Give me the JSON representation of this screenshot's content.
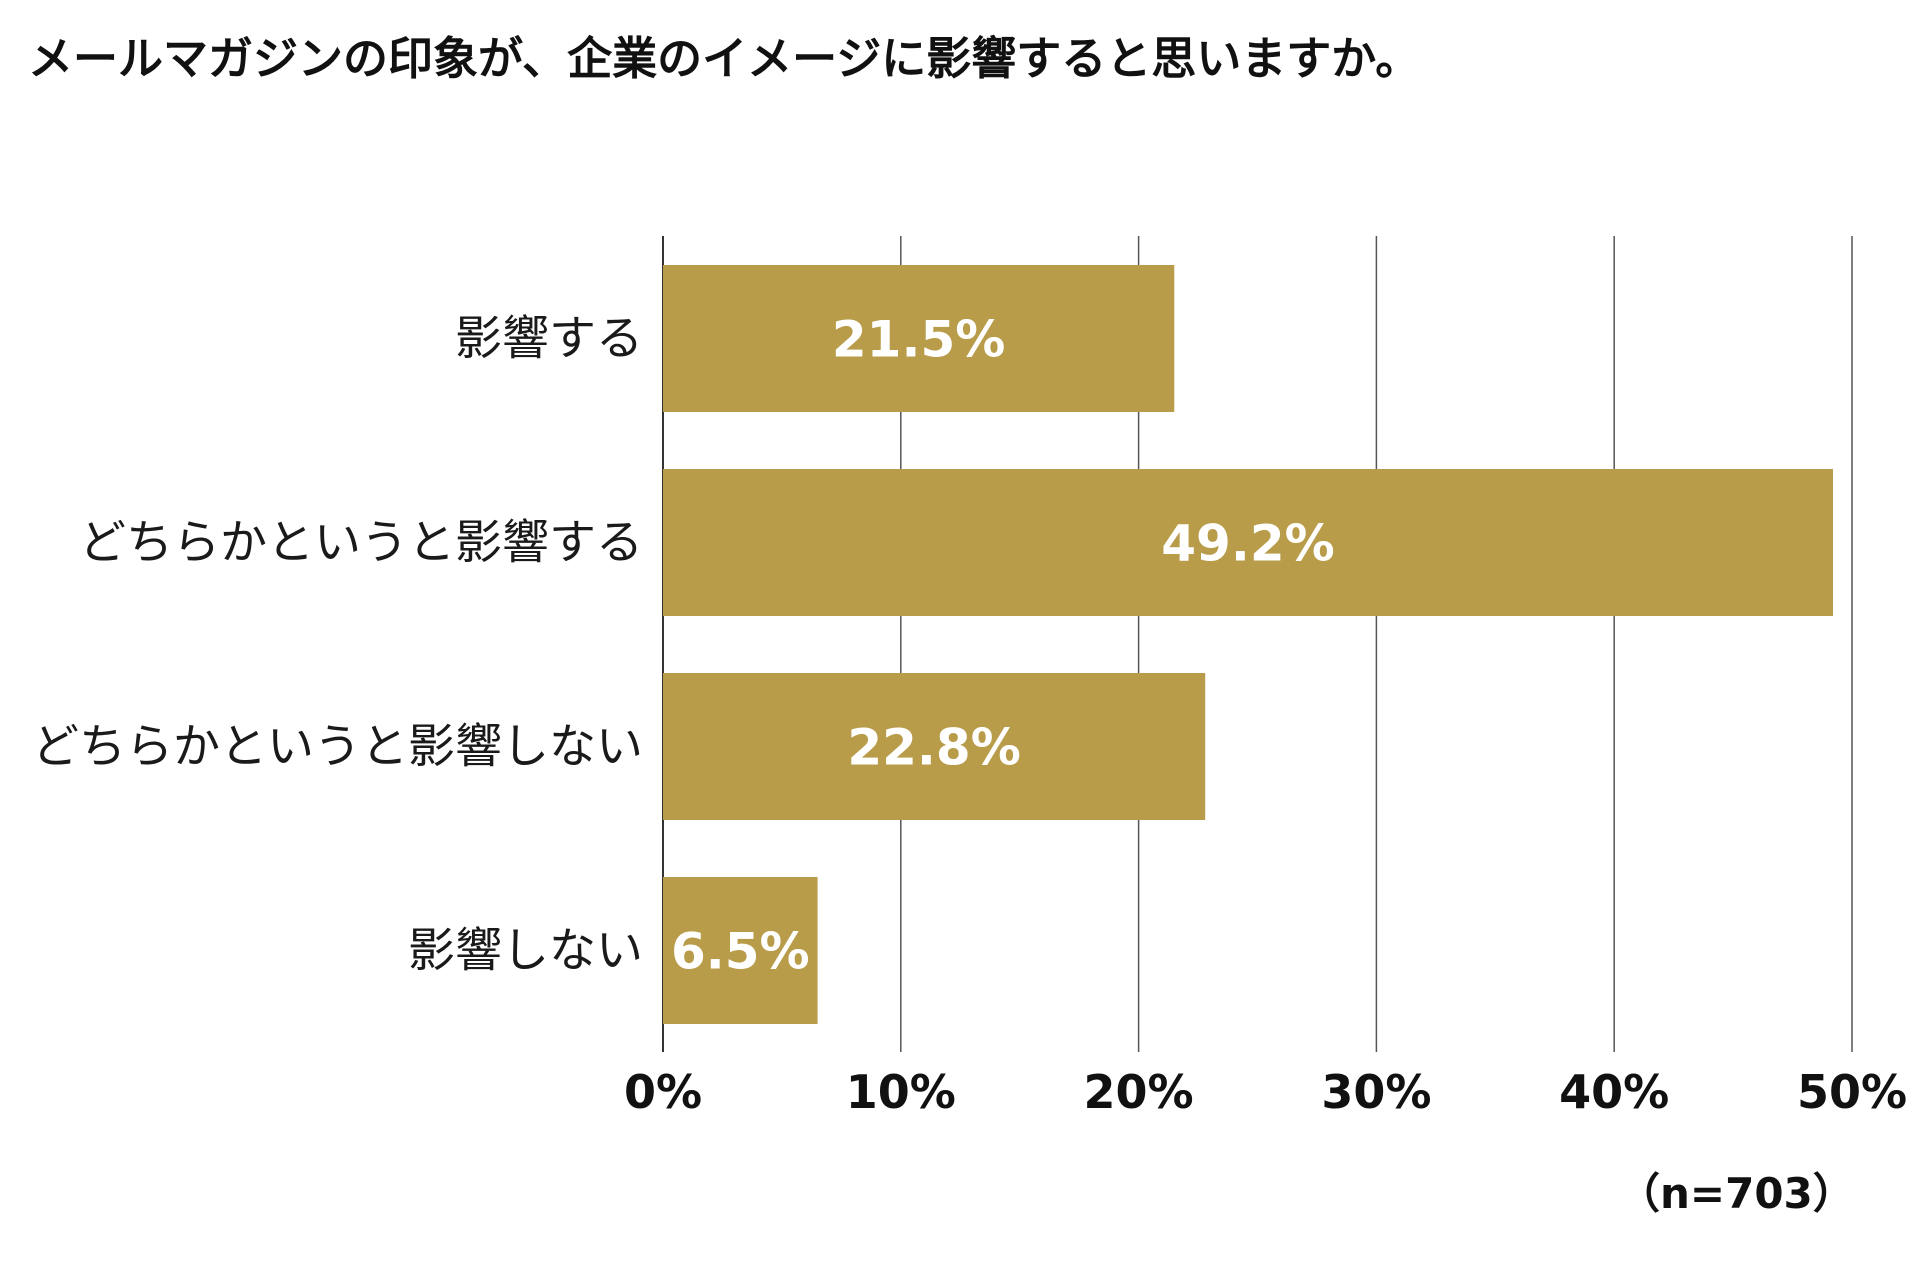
{
  "chart_data": {
    "type": "bar",
    "orientation": "horizontal",
    "title": "メールマガジンの印象が、企業のイメージに影響すると思いますか。",
    "categories": [
      "影響する",
      "どちらかというと影響する",
      "どちらかというと影響しない",
      "影響しない"
    ],
    "values": [
      21.5,
      49.2,
      22.8,
      6.5
    ],
    "value_labels": [
      "21.5%",
      "49.2%",
      "22.8%",
      "6.5%"
    ],
    "xlim": [
      0,
      50
    ],
    "xticks": [
      0,
      10,
      20,
      30,
      40,
      50
    ],
    "xtick_labels": [
      "0%",
      "10%",
      "20%",
      "30%",
      "40%",
      "50%"
    ],
    "grid": "vertical",
    "legend": "none",
    "note": "（n=703）",
    "bar_color": "#B89C4A",
    "grid_color": "#555555"
  }
}
